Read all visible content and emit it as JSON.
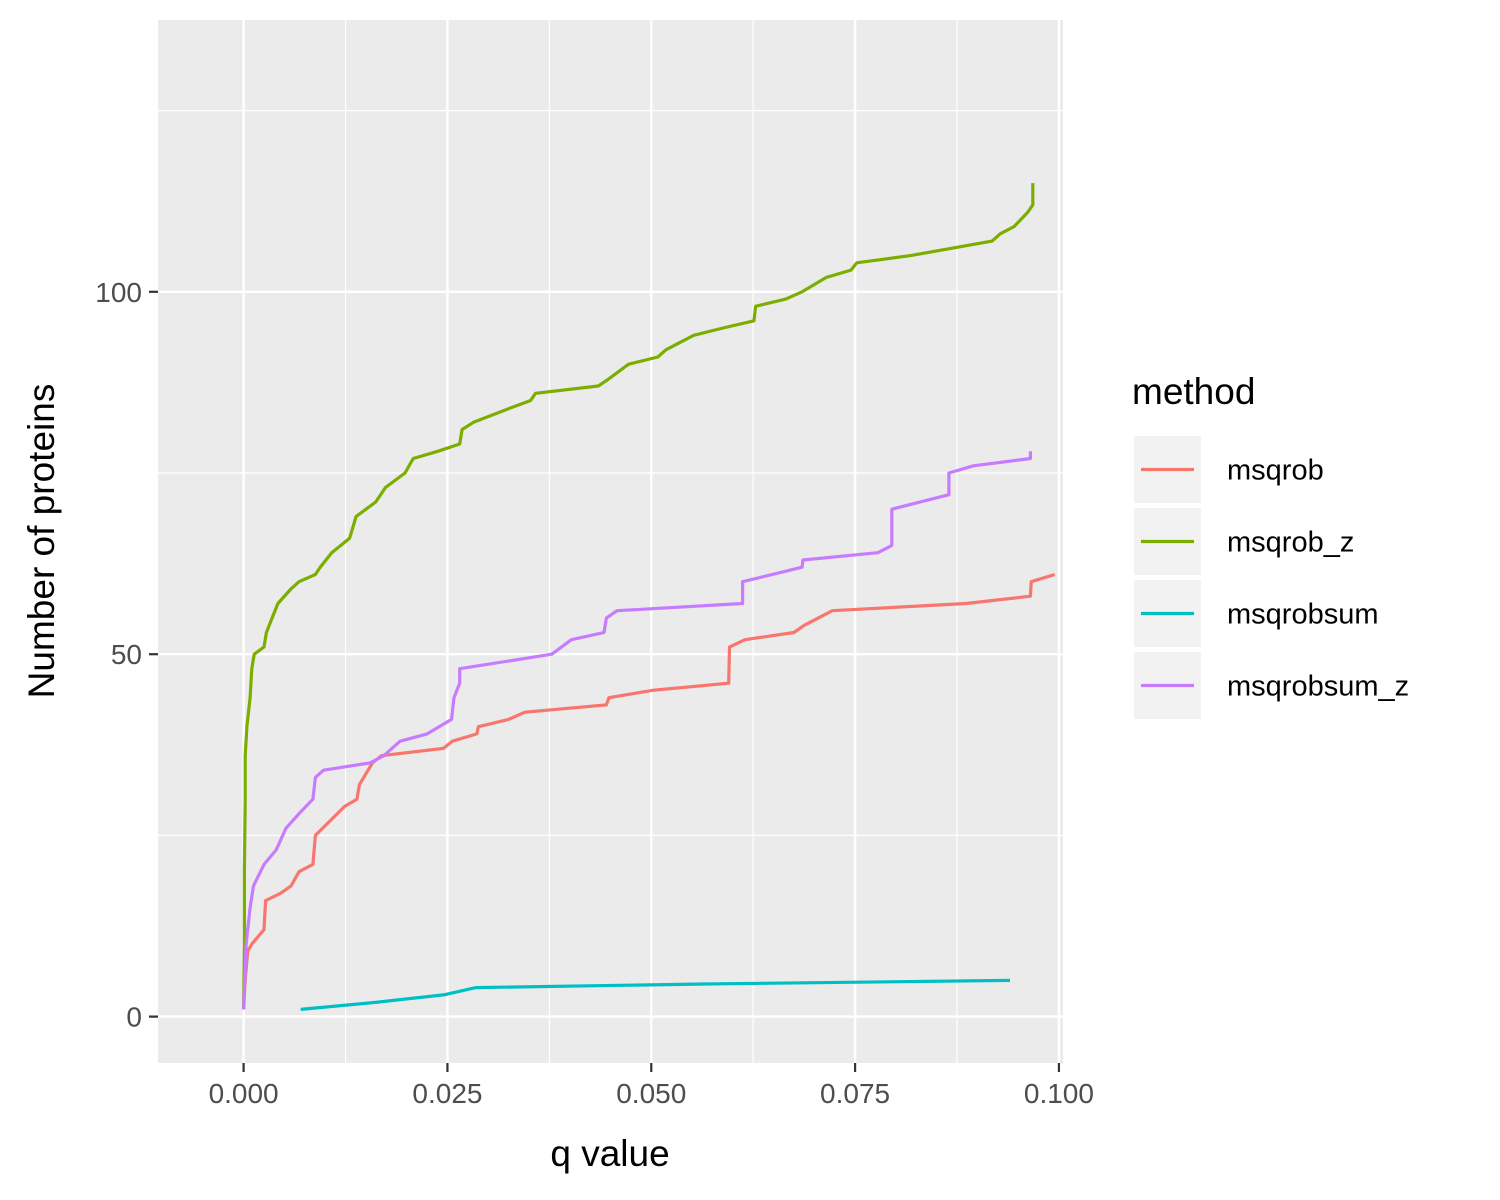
{
  "chart_data": {
    "type": "line",
    "title": "",
    "xlabel": "q value",
    "ylabel": "Number of proteins",
    "xlim": [
      -0.0105,
      0.1005
    ],
    "ylim": [
      -6.4,
      137.5
    ],
    "x_ticks": [
      0.0,
      0.025,
      0.05,
      0.075,
      0.1
    ],
    "x_tick_labels": [
      "0.000",
      "0.025",
      "0.050",
      "0.075",
      "0.100"
    ],
    "y_ticks": [
      0,
      50,
      100
    ],
    "y_tick_labels": [
      "0",
      "50",
      "100"
    ],
    "grid": true,
    "legend": {
      "title": "method",
      "position": "right"
    },
    "series": [
      {
        "name": "msqrob",
        "color": "#F8766D",
        "points": [
          [
            0.0,
            1
          ],
          [
            0.0002,
            5
          ],
          [
            0.0005,
            9
          ],
          [
            0.001,
            10
          ],
          [
            0.0025,
            12
          ],
          [
            0.0027,
            16
          ],
          [
            0.0045,
            17
          ],
          [
            0.0058,
            18
          ],
          [
            0.0068,
            20
          ],
          [
            0.0085,
            21
          ],
          [
            0.0088,
            25
          ],
          [
            0.0106,
            27
          ],
          [
            0.0124,
            29
          ],
          [
            0.0139,
            30
          ],
          [
            0.0142,
            32
          ],
          [
            0.0158,
            35
          ],
          [
            0.0169,
            36
          ],
          [
            0.0245,
            37
          ],
          [
            0.0256,
            38
          ],
          [
            0.0286,
            39
          ],
          [
            0.0288,
            40
          ],
          [
            0.0325,
            41
          ],
          [
            0.0345,
            42
          ],
          [
            0.0445,
            43
          ],
          [
            0.0448,
            44
          ],
          [
            0.0501,
            45
          ],
          [
            0.0595,
            46
          ],
          [
            0.0596,
            51
          ],
          [
            0.0615,
            52
          ],
          [
            0.0675,
            53
          ],
          [
            0.0688,
            54
          ],
          [
            0.0722,
            56
          ],
          [
            0.0886,
            57
          ],
          [
            0.0965,
            58
          ],
          [
            0.0966,
            60
          ],
          [
            0.0995,
            61
          ]
        ]
      },
      {
        "name": "msqrob_z",
        "color": "#7CAE00",
        "points": [
          [
            0.0,
            1
          ],
          [
            0.0001,
            10
          ],
          [
            0.0001,
            20
          ],
          [
            0.0002,
            30
          ],
          [
            0.0002,
            36
          ],
          [
            0.0004,
            40
          ],
          [
            0.0008,
            44
          ],
          [
            0.001,
            48
          ],
          [
            0.0013,
            50
          ],
          [
            0.0025,
            51
          ],
          [
            0.0028,
            53
          ],
          [
            0.0035,
            55
          ],
          [
            0.0042,
            57
          ],
          [
            0.0058,
            59
          ],
          [
            0.0068,
            60
          ],
          [
            0.0088,
            61
          ],
          [
            0.0094,
            62
          ],
          [
            0.0108,
            64
          ],
          [
            0.013,
            66
          ],
          [
            0.0138,
            69
          ],
          [
            0.0162,
            71
          ],
          [
            0.0174,
            73
          ],
          [
            0.0198,
            75
          ],
          [
            0.0208,
            77
          ],
          [
            0.0238,
            78
          ],
          [
            0.0265,
            79
          ],
          [
            0.0268,
            81
          ],
          [
            0.0282,
            82
          ],
          [
            0.0305,
            83
          ],
          [
            0.0328,
            84
          ],
          [
            0.0352,
            85
          ],
          [
            0.0358,
            86
          ],
          [
            0.0435,
            87
          ],
          [
            0.0448,
            88
          ],
          [
            0.0472,
            90
          ],
          [
            0.0508,
            91
          ],
          [
            0.0518,
            92
          ],
          [
            0.0552,
            94
          ],
          [
            0.0588,
            95
          ],
          [
            0.0626,
            96
          ],
          [
            0.0628,
            98
          ],
          [
            0.0665,
            99
          ],
          [
            0.0685,
            100
          ],
          [
            0.0715,
            102
          ],
          [
            0.0745,
            103
          ],
          [
            0.0752,
            104
          ],
          [
            0.0818,
            105
          ],
          [
            0.0918,
            107
          ],
          [
            0.0928,
            108
          ],
          [
            0.0945,
            109
          ],
          [
            0.0962,
            111
          ],
          [
            0.0968,
            112
          ],
          [
            0.0968,
            115
          ]
        ]
      },
      {
        "name": "msqrobsum",
        "color": "#00BFC4",
        "points": [
          [
            0.007,
            1
          ],
          [
            0.0165,
            2
          ],
          [
            0.0245,
            3
          ],
          [
            0.0285,
            4
          ],
          [
            0.0565,
            4.5
          ],
          [
            0.094,
            5
          ]
        ]
      },
      {
        "name": "msqrobsum_z",
        "color": "#C77CFF",
        "points": [
          [
            0.0,
            1
          ],
          [
            0.0003,
            10
          ],
          [
            0.0008,
            15
          ],
          [
            0.0012,
            18
          ],
          [
            0.0025,
            21
          ],
          [
            0.004,
            23
          ],
          [
            0.0052,
            26
          ],
          [
            0.0068,
            28
          ],
          [
            0.0085,
            30
          ],
          [
            0.0088,
            33
          ],
          [
            0.0098,
            34
          ],
          [
            0.0155,
            35
          ],
          [
            0.0172,
            36
          ],
          [
            0.0192,
            38
          ],
          [
            0.0225,
            39
          ],
          [
            0.0255,
            41
          ],
          [
            0.0258,
            44
          ],
          [
            0.0265,
            46
          ],
          [
            0.0265,
            48
          ],
          [
            0.0378,
            50
          ],
          [
            0.0402,
            52
          ],
          [
            0.0442,
            53
          ],
          [
            0.0445,
            55
          ],
          [
            0.0458,
            56
          ],
          [
            0.0612,
            57
          ],
          [
            0.0612,
            60
          ],
          [
            0.0685,
            62
          ],
          [
            0.0686,
            63
          ],
          [
            0.0778,
            64
          ],
          [
            0.0795,
            65
          ],
          [
            0.0795,
            70
          ],
          [
            0.0865,
            72
          ],
          [
            0.0865,
            75
          ],
          [
            0.0895,
            76
          ],
          [
            0.0965,
            77
          ],
          [
            0.0965,
            78
          ]
        ]
      }
    ]
  }
}
